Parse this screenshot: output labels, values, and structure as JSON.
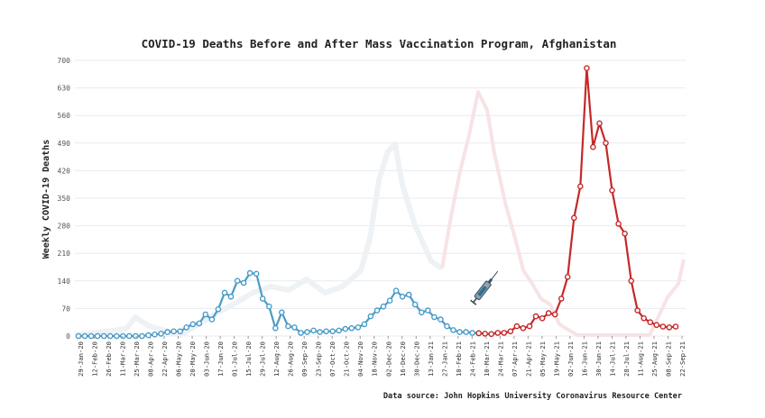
{
  "chart_data": {
    "type": "line",
    "title": "COVID-19 Deaths Before and After Mass Vaccination Program, Afghanistan",
    "ylabel": "Weekly COVID-19 Deaths",
    "xlabel": "",
    "source": "Data source: John Hopkins University Coronavirus Resource Center",
    "ylim": [
      0,
      700
    ],
    "yticks": [
      "0",
      "70",
      "140",
      "210",
      "280",
      "350",
      "420",
      "490",
      "560",
      "630",
      "700"
    ],
    "grid": true,
    "icon": "syringe-icon",
    "x_tick_labels": [
      "29-Jan-20",
      "12-Feb-20",
      "26-Feb-20",
      "11-Mar-20",
      "25-Mar-20",
      "08-Apr-20",
      "22-Apr-20",
      "06-May-20",
      "20-May-20",
      "03-Jun-20",
      "17-Jun-20",
      "01-Jul-20",
      "15-Jul-20",
      "29-Jul-20",
      "12-Aug-20",
      "26-Aug-20",
      "09-Sep-20",
      "23-Sep-20",
      "07-Oct-20",
      "21-Oct-20",
      "04-Nov-20",
      "18-Nov-20",
      "02-Dec-20",
      "16-Dec-20",
      "30-Dec-20",
      "13-Jan-21",
      "27-Jan-21",
      "10-Feb-21",
      "24-Feb-21",
      "10-Mar-21",
      "24-Mar-21",
      "07-Apr-21",
      "21-Apr-21",
      "05-May-21",
      "19-May-21",
      "02-Jun-21",
      "16-Jun-21",
      "30-Jun-21",
      "14-Jul-21",
      "28-Jul-21",
      "11-Aug-21",
      "25-Aug-21",
      "08-Sep-21",
      "22-Sep-21"
    ],
    "series": [
      {
        "color": "#4a9cc8",
        "values": [
          0,
          0,
          0,
          0,
          0,
          0,
          0,
          0,
          0,
          0,
          0,
          2,
          4,
          6,
          10,
          12,
          12,
          22,
          30,
          32,
          55,
          42,
          68,
          110,
          100,
          140,
          135,
          160,
          158,
          95,
          75,
          20,
          60,
          25,
          22,
          8,
          10,
          14,
          10,
          12,
          12,
          14,
          18,
          20,
          22,
          30,
          50,
          65,
          75,
          90,
          115,
          100,
          105,
          80,
          60,
          65,
          48,
          42,
          25,
          15,
          10,
          10,
          8,
          7
        ]
      },
      {
        "color": "#c62828",
        "values": [
          7,
          6,
          5,
          8,
          8,
          12,
          25,
          20,
          25,
          50,
          45,
          58,
          55,
          95,
          150,
          300,
          380,
          680,
          480,
          540,
          490,
          370,
          285,
          260,
          140,
          65,
          45,
          35,
          28,
          24,
          22,
          24
        ]
      },
      {
        "color": "#f3f5f6",
        "values": [
          null,
          null,
          null,
          null,
          null,
          null,
          null,
          null,
          null,
          null,
          null,
          null,
          null,
          null,
          null,
          null,
          null,
          null,
          null,
          null,
          null,
          null,
          null,
          null,
          null,
          null,
          null,
          null,
          null,
          null,
          null,
          null,
          null,
          null,
          null,
          null,
          null,
          null,
          null,
          null,
          null,
          null,
          null,
          null,
          null,
          null,
          null,
          null,
          null,
          null,
          null,
          null,
          null,
          null,
          null,
          null,
          null,
          null,
          null,
          null,
          null,
          null,
          null,
          null,
          null,
          null,
          null,
          null,
          null,
          null,
          null,
          null,
          null,
          null,
          null,
          null,
          null,
          null,
          null,
          null,
          null,
          null,
          null,
          null,
          null,
          null,
          null,
          null,
          null,
          null,
          null,
          null,
          null,
          null,
          null,
          null,
          null,
          null,
          null,
          null,
          null,
          null,
          null,
          null,
          null,
          null,
          null,
          null,
          null,
          null,
          null,
          null,
          null,
          null,
          null,
          null,
          null,
          null,
          null,
          null,
          null,
          null,
          null,
          null,
          null,
          null,
          null,
          null,
          null,
          null,
          null,
          null,
          null,
          null,
          null,
          null,
          null,
          null,
          null,
          null,
          null,
          null,
          null,
          null,
          null,
          null,
          null,
          null,
          null,
          null,
          null,
          null,
          null,
          null,
          null,
          null,
          null,
          null,
          null,
          null,
          null,
          null,
          null,
          null,
          null,
          null,
          null,
          null,
          null,
          null,
          null,
          null,
          null,
          null,
          null,
          null,
          null,
          null,
          null,
          null,
          null,
          null,
          null,
          null,
          null,
          null,
          null,
          null,
          null,
          null,
          null,
          null,
          null,
          null,
          null,
          null,
          null,
          null,
          null,
          null,
          null,
          null,
          null,
          null,
          null,
          null,
          null,
          null,
          null,
          null,
          null,
          null,
          null,
          null,
          null,
          null,
          null,
          null,
          null,
          null,
          null,
          null,
          null,
          null,
          null,
          null,
          null,
          null,
          null,
          null,
          null,
          null,
          null,
          null,
          null,
          null,
          null,
          null,
          null,
          null,
          null,
          null,
          null,
          null,
          null,
          null,
          null,
          null,
          null,
          null,
          null,
          null,
          null,
          null,
          null,
          null,
          null,
          null,
          null,
          null,
          null,
          null,
          null,
          null,
          null,
          null,
          null,
          null,
          null,
          null,
          null,
          null,
          null,
          null,
          null,
          null,
          null,
          null,
          null,
          null,
          null,
          null,
          null,
          null,
          null,
          null,
          null,
          null,
          null,
          null,
          null,
          null,
          null,
          null,
          null
        ]
      }
    ]
  }
}
